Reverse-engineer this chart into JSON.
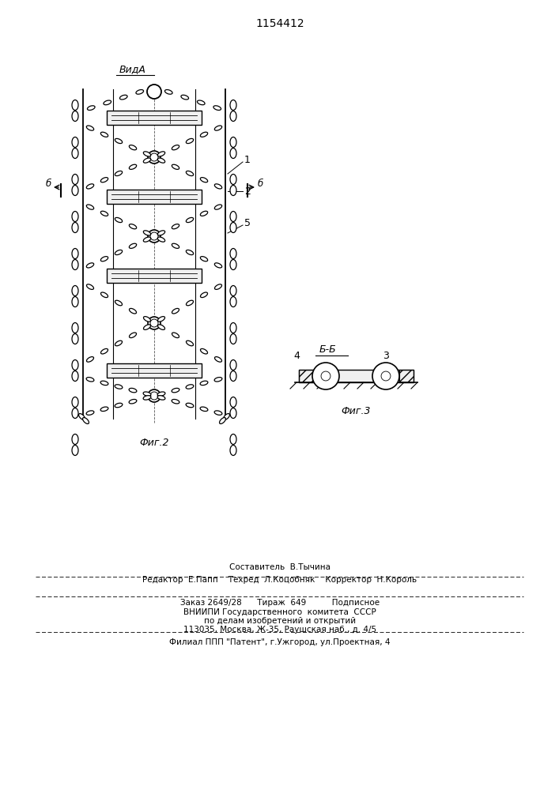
{
  "title_patent": "1154412",
  "bg_color": "#ffffff",
  "fig_width": 7.07,
  "fig_height": 10.0,
  "view_label": "ВидА",
  "fig2_label": "Фиг.2",
  "fig3_label": "Фиг.3",
  "section_label": "Б-Б",
  "label1": "1",
  "label2": "2",
  "label5": "5",
  "label4": "4",
  "label3": "3",
  "labelB_left": "б",
  "labelB_right": "б",
  "footer_line1": "Составитель  В.Тычина",
  "footer_line2": "Редактор  Е.Папп    Техред  Л.Коцобняк    Корректор  Н.Король",
  "footer_line3": "Заказ 2649/28      Тираж  649          Подписное",
  "footer_line4": "ВНИИПИ Государственного  комитета  СССР",
  "footer_line5": "по делам изобретений и открытий",
  "footer_line6": "113035, Москва, Ж-35, Раушская наб., д. 4/5",
  "footer_line7": "Филиал ППП \"Патент\", г.Ужгород, ул.Проектная, 4"
}
